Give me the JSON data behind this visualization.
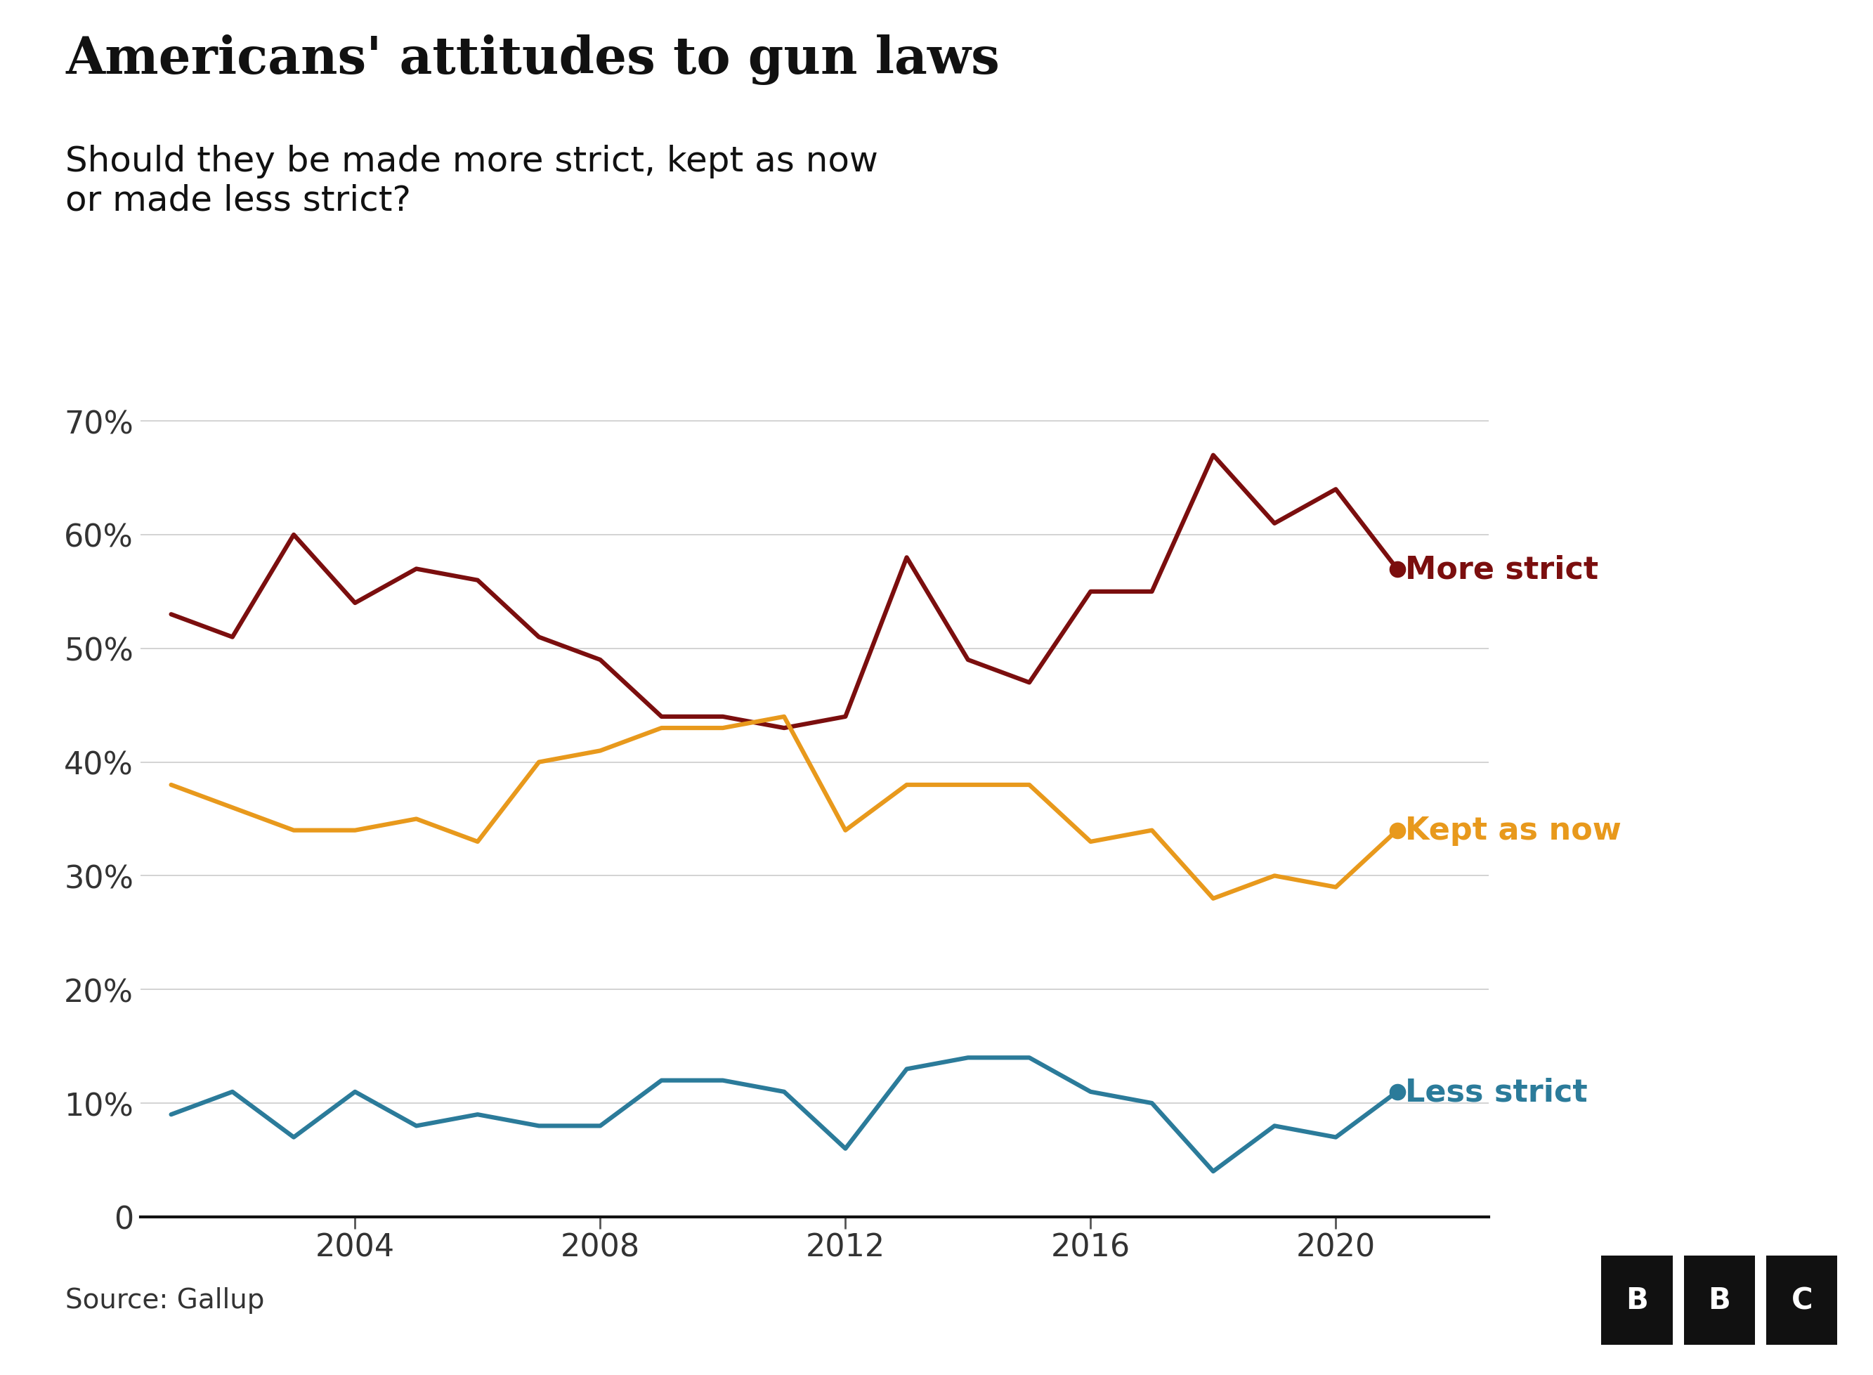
{
  "title": "Americans' attitudes to gun laws",
  "subtitle": "Should they be made more strict, kept as now\nor made less strict?",
  "source": "Source: Gallup",
  "background_color": "#ffffff",
  "title_fontsize": 52,
  "subtitle_fontsize": 36,
  "more_strict": {
    "years": [
      2001,
      2002,
      2003,
      2004,
      2005,
      2006,
      2007,
      2008,
      2009,
      2010,
      2011,
      2012,
      2013,
      2014,
      2015,
      2016,
      2017,
      2018,
      2019,
      2020,
      2021
    ],
    "values": [
      53,
      51,
      60,
      54,
      57,
      56,
      51,
      49,
      44,
      44,
      43,
      44,
      58,
      49,
      47,
      55,
      55,
      67,
      61,
      64,
      57
    ],
    "color": "#7b0e0e",
    "label": "More strict",
    "linewidth": 4.5
  },
  "kept_as_now": {
    "years": [
      2001,
      2002,
      2003,
      2004,
      2005,
      2006,
      2007,
      2008,
      2009,
      2010,
      2011,
      2012,
      2013,
      2014,
      2015,
      2016,
      2017,
      2018,
      2019,
      2020,
      2021
    ],
    "values": [
      38,
      36,
      34,
      34,
      35,
      33,
      40,
      41,
      43,
      43,
      44,
      34,
      38,
      38,
      38,
      33,
      34,
      28,
      30,
      29,
      34
    ],
    "color": "#e8991c",
    "label": "Kept as now",
    "linewidth": 4.5
  },
  "less_strict": {
    "years": [
      2001,
      2002,
      2003,
      2004,
      2005,
      2006,
      2007,
      2008,
      2009,
      2010,
      2011,
      2012,
      2013,
      2014,
      2015,
      2016,
      2017,
      2018,
      2019,
      2020,
      2021
    ],
    "values": [
      9,
      11,
      7,
      11,
      8,
      9,
      8,
      8,
      12,
      12,
      11,
      6,
      13,
      14,
      14,
      11,
      10,
      4,
      8,
      7,
      11
    ],
    "color": "#2b7b9a",
    "label": "Less strict",
    "linewidth": 4.5
  },
  "ylim": [
    0,
    72
  ],
  "yticks": [
    0,
    10,
    20,
    30,
    40,
    50,
    60,
    70
  ],
  "ytick_labels": [
    "0",
    "10%",
    "20%",
    "30%",
    "40%",
    "50%",
    "60%",
    "70%"
  ],
  "xlim": [
    2000.5,
    2022.5
  ],
  "xticks": [
    2004,
    2008,
    2012,
    2016,
    2020
  ],
  "label_fontsize": 32,
  "tick_fontsize": 32,
  "source_fontsize": 28
}
